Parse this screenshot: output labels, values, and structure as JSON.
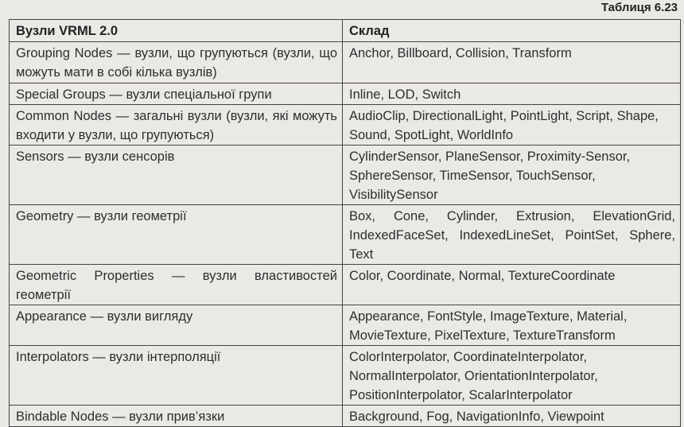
{
  "caption": "Таблиця 6.23",
  "headers": [
    "Вузли VRML 2.0",
    "Склад"
  ],
  "rows": [
    {
      "node": "Grouping Nodes — вузли, що групуються (вузли, що можуть мати в собі кілька вузлів)",
      "content": "Anchor, Billboard, Collision, Transform"
    },
    {
      "node": "Special Groups — вузли спеціальної групи",
      "content": "Inline, LOD, Switch"
    },
    {
      "node": "Common Nodes — загальні вузли (вузли, які можуть входити у вузли, що групуються)",
      "content": "AudioClip, DirectionalLight, PointLight, Script, Shape, Sound, SpotLight, WorldInfo"
    },
    {
      "node": "Sensors — вузли сенсорів",
      "content": "CylinderSensor, PlaneSensor, Proximity-Sensor, SphereSensor, TimeSensor, TouchSensor, VisibilitySensor"
    },
    {
      "node": "Geometry — вузли геометрії",
      "content": "Box, Cone, Cylinder, Extrusion, ElevationGrid, IndexedFaceSet, IndexedLineSet, PointSet, Sphere, Text"
    },
    {
      "node": "Geometric Properties — вузли властивостей геометрії",
      "content": "Color, Coordinate, Normal, TextureCoordinate"
    },
    {
      "node": "Appearance — вузли вигляду",
      "content": "Appearance, FontStyle, ImageTexture, Material, MovieTexture, PixelTexture, TextureTransform"
    },
    {
      "node": "Interpolators — вузли інтерполяції",
      "content": "ColorInterpolator, CoordinateInterpolator, NormalInterpolator, OrientationInterpolator, PositionInterpolator, ScalarInterpolator"
    },
    {
      "node": "Bindable Nodes — вузли прив’язки",
      "content": "Background, Fog, NavigationInfo, Viewpoint"
    }
  ]
}
